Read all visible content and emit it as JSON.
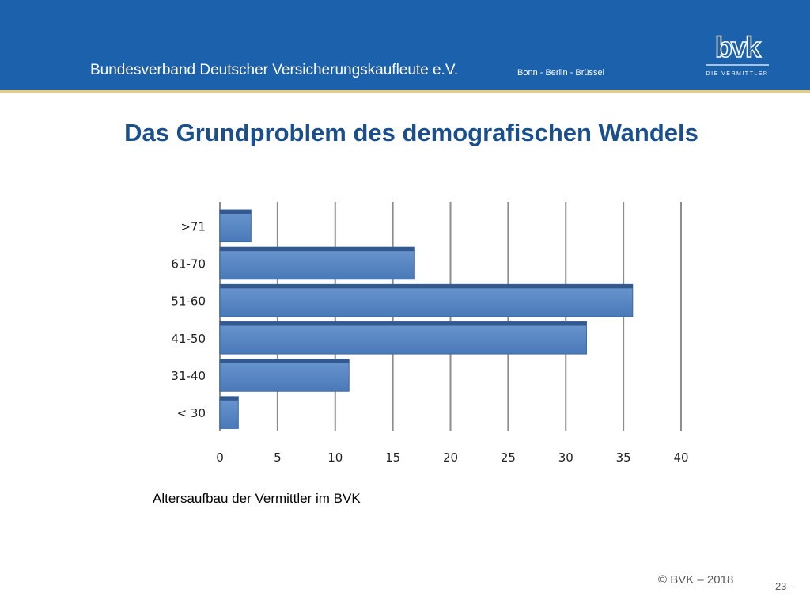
{
  "header": {
    "org_name": "Bundesverband Deutscher Versicherungskaufleute e.V.",
    "cities": "Bonn - Berlin - Brüssel",
    "logo_letters": "bvk",
    "logo_tagline": "DIE VERMITTLER"
  },
  "page_title": "Das Grundproblem des demografischen Wandels",
  "chart_data": {
    "type": "bar",
    "orientation": "horizontal",
    "categories": [
      ">71",
      "61-70",
      "51-60",
      "41-50",
      "31-40",
      "< 30"
    ],
    "values": [
      2.7,
      16.9,
      35.8,
      31.8,
      11.2,
      1.6
    ],
    "xlim": [
      0,
      40
    ],
    "xticks": [
      0,
      5,
      10,
      15,
      20,
      25,
      30,
      35,
      40
    ],
    "grid": "vertical",
    "bar_color": "#4f81bd"
  },
  "caption": "Altersaufbau der Vermittler im BVK",
  "footer": {
    "copyright": "© BVK – 2018",
    "page_number": "- 23 -"
  },
  "colors": {
    "header_bg": "#1b61ab",
    "header_rule": "#e8cd7c",
    "title": "#1a4f8c"
  }
}
